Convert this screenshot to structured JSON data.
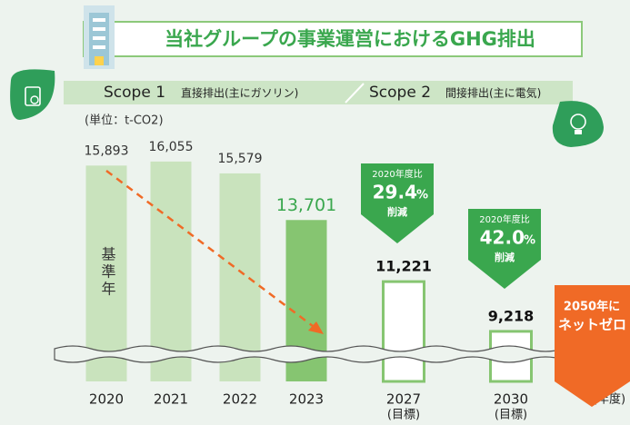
{
  "chart_data": {
    "type": "bar",
    "title": "当社グループの事業運営におけるGHG排出",
    "scopes": [
      {
        "name": "Scope 1",
        "desc": "直接排出(主にガソリン)"
      },
      {
        "name": "Scope 2",
        "desc": "間接排出(主に電気)"
      }
    ],
    "unit": "(単位：t-CO2)",
    "categories": [
      "2020",
      "2021",
      "2022",
      "2023",
      "2027",
      "2030"
    ],
    "category_notes": [
      null,
      null,
      null,
      null,
      "(目標)",
      "(目標)"
    ],
    "values": [
      15893,
      16055,
      15579,
      13701,
      11221,
      9218
    ],
    "value_labels": [
      "15,893",
      "16,055",
      "15,579",
      "13,701",
      "11,221",
      "9,218"
    ],
    "colors": [
      "#c9e3bd",
      "#c9e3bd",
      "#c9e3bd",
      "#86c571",
      "#ffffff",
      "#ffffff"
    ],
    "outline_color": "#86c571",
    "base_year_text": "基準年",
    "x_label": "(年度)",
    "annotations": [
      {
        "text": "2020年度比",
        "value": "29.4",
        "unit": "%",
        "note": "削減"
      },
      {
        "text": "2020年度比",
        "value": "42.0",
        "unit": "%",
        "note": "削減"
      }
    ],
    "goal": [
      "2050年に",
      "ネットゼロ"
    ]
  }
}
